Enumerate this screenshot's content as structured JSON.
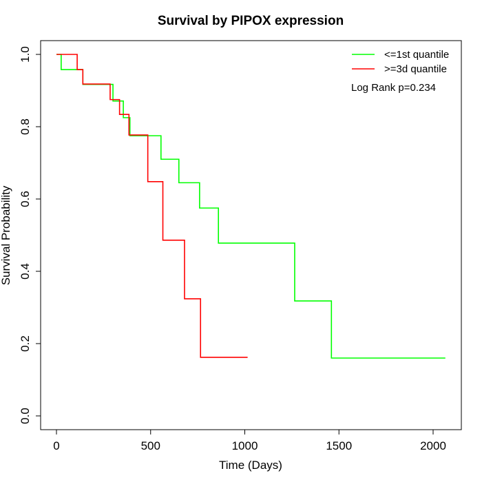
{
  "chart_data": {
    "type": "line",
    "title": "Survival by PIPOX expression",
    "xlabel": "Time (Days)",
    "ylabel": "Survival Probability",
    "xlim": [
      0,
      2070
    ],
    "ylim": [
      0,
      1
    ],
    "x_ticks": [
      0,
      500,
      1000,
      1500,
      2000
    ],
    "y_ticks": [
      0.0,
      0.2,
      0.4,
      0.6,
      0.8,
      1.0
    ],
    "y_tick_labels": [
      "0.0",
      "0.2",
      "0.4",
      "0.6",
      "0.8",
      "1.0"
    ],
    "grid": false,
    "legend_position": "top-right",
    "annotation": "Log Rank p=0.234",
    "series": [
      {
        "name": "<=1st quantile",
        "color": "#00ff00",
        "step": true,
        "x": [
          0,
          25,
          140,
          300,
          355,
          390,
          555,
          650,
          760,
          860,
          1265,
          1460,
          2065
        ],
        "y": [
          1.0,
          0.958,
          0.917,
          0.871,
          0.825,
          0.775,
          0.71,
          0.645,
          0.575,
          0.478,
          0.318,
          0.16,
          0.16
        ]
      },
      {
        "name": ">=3d quantile",
        "color": "#ff0000",
        "step": true,
        "x": [
          0,
          110,
          140,
          285,
          335,
          385,
          485,
          565,
          680,
          765,
          1015
        ],
        "y": [
          1.0,
          0.958,
          0.918,
          0.875,
          0.834,
          0.777,
          0.648,
          0.486,
          0.324,
          0.162,
          0.162
        ]
      }
    ]
  }
}
